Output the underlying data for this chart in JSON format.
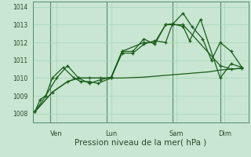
{
  "background_color": "#c8e6d2",
  "grid_color": "#a8d4b8",
  "line_color": "#1a5c1a",
  "sep_color": "#5a8a6a",
  "title": "Pression niveau de la mer( hPa )",
  "ylim": [
    1007.5,
    1014.3
  ],
  "yticks": [
    1008,
    1009,
    1010,
    1011,
    1012,
    1013,
    1014
  ],
  "day_labels": [
    "Ven",
    "Lun",
    "Sam",
    "Dim"
  ],
  "day_positions": [
    1.0,
    3.5,
    6.5,
    8.7
  ],
  "day_lines": [
    0.7,
    3.3,
    6.3,
    8.5
  ],
  "series1": {
    "x": [
      0.0,
      0.25,
      0.5,
      0.8,
      1.3,
      1.8,
      2.1,
      2.5,
      2.9,
      3.5,
      4.0,
      4.5,
      5.0,
      5.5,
      6.0,
      6.3,
      6.8,
      7.2,
      7.7,
      8.1,
      8.5,
      9.0,
      9.5
    ],
    "y": [
      1008.1,
      1008.8,
      1009.0,
      1010.0,
      1010.6,
      1010.0,
      1009.8,
      1009.8,
      1009.7,
      1010.0,
      1011.4,
      1011.4,
      1011.9,
      1012.1,
      1012.0,
      1013.0,
      1013.65,
      1012.9,
      1012.2,
      1011.0,
      1012.0,
      1011.5,
      1010.6
    ]
  },
  "series2": {
    "x": [
      0.0,
      0.5,
      1.0,
      1.5,
      2.0,
      2.5,
      3.0,
      3.5,
      4.0,
      5.0,
      5.5,
      6.0,
      6.3,
      6.8,
      7.1,
      7.6,
      8.5,
      9.0,
      9.5
    ],
    "y": [
      1008.1,
      1009.0,
      1010.0,
      1010.7,
      1010.0,
      1009.7,
      1009.9,
      1010.05,
      1011.5,
      1012.0,
      1012.0,
      1013.0,
      1013.05,
      1012.9,
      1012.1,
      1013.3,
      1010.0,
      1010.8,
      1010.6
    ]
  },
  "series3": {
    "x": [
      0.0,
      0.8,
      1.5,
      2.0,
      2.5,
      3.0,
      3.5,
      4.0,
      5.0,
      5.5,
      6.0,
      6.5,
      7.0,
      7.5,
      8.0,
      8.5,
      9.0,
      9.5
    ],
    "y": [
      1008.1,
      1009.2,
      1009.8,
      1010.0,
      1010.0,
      1010.0,
      1010.0,
      1010.0,
      1010.05,
      1010.1,
      1010.15,
      1010.2,
      1010.25,
      1010.3,
      1010.35,
      1010.45,
      1010.5,
      1010.55
    ]
  },
  "series4": {
    "x": [
      0.0,
      0.8,
      1.5,
      2.0,
      2.5,
      3.0,
      3.5,
      4.0,
      4.5,
      5.0,
      5.5,
      6.0,
      6.3,
      6.8,
      8.5,
      9.0,
      9.5
    ],
    "y": [
      1008.1,
      1009.2,
      1009.8,
      1010.0,
      1010.0,
      1010.0,
      1010.0,
      1011.5,
      1011.5,
      1012.2,
      1011.9,
      1013.0,
      1013.0,
      1013.0,
      1010.7,
      1010.5,
      1010.55
    ]
  },
  "xlim": [
    -0.1,
    9.8
  ],
  "ylabel_fontsize": 5.5,
  "xlabel_fontsize": 7.5,
  "tick_fontsize": 5.5,
  "day_fontsize": 6.0
}
